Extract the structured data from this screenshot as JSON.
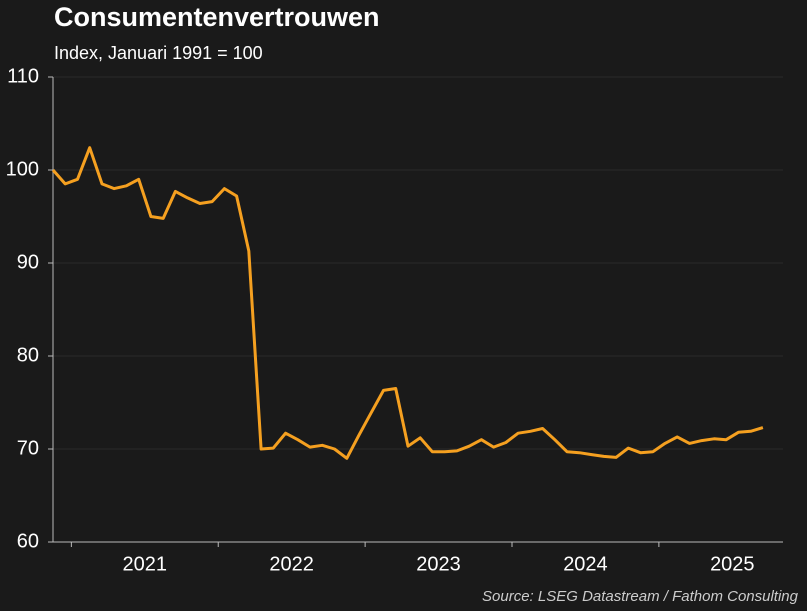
{
  "chart_data": {
    "type": "line",
    "title": "Consumentenvertrouwen",
    "subtitle": "Index, Januari 1991 = 100",
    "source": "Source: LSEG Datastream / Fathom Consulting",
    "categories": [
      null,
      null,
      null,
      null,
      null,
      null,
      null,
      "2021",
      null,
      null,
      null,
      null,
      null,
      null,
      null,
      null,
      null,
      null,
      null,
      "2022",
      null,
      null,
      null,
      null,
      null,
      null,
      null,
      null,
      null,
      null,
      null,
      "2023",
      null,
      null,
      null,
      null,
      null,
      null,
      null,
      null,
      null,
      null,
      null,
      "2024",
      null,
      null,
      null,
      null,
      null,
      null,
      null,
      null,
      null,
      null,
      null,
      "2025",
      null,
      null,
      null
    ],
    "series": [
      {
        "color": "#f5a020",
        "values": [
          100,
          98.5,
          99,
          102.4,
          98.5,
          98,
          98.3,
          99,
          95,
          94.8,
          97.7,
          97,
          96.4,
          96.6,
          98,
          97.2,
          91.3,
          70,
          70.1,
          71.7,
          71,
          70.2,
          70.4,
          70,
          69,
          71.5,
          73.9,
          76.3,
          76.5,
          70.3,
          71.2,
          69.7,
          69.7,
          69.8,
          70.3,
          71,
          70.2,
          70.7,
          71.7,
          71.9,
          72.2,
          71,
          69.7,
          69.6,
          69.4,
          69.2,
          69.1,
          70.1,
          69.6,
          69.7,
          70.6,
          71.3,
          70.6,
          70.9,
          71.1,
          71,
          71.8,
          71.9,
          72.3
        ]
      }
    ],
    "ylim": [
      60,
      110
    ],
    "yticks": [
      60,
      70,
      80,
      90,
      100,
      110
    ],
    "grid": true
  }
}
